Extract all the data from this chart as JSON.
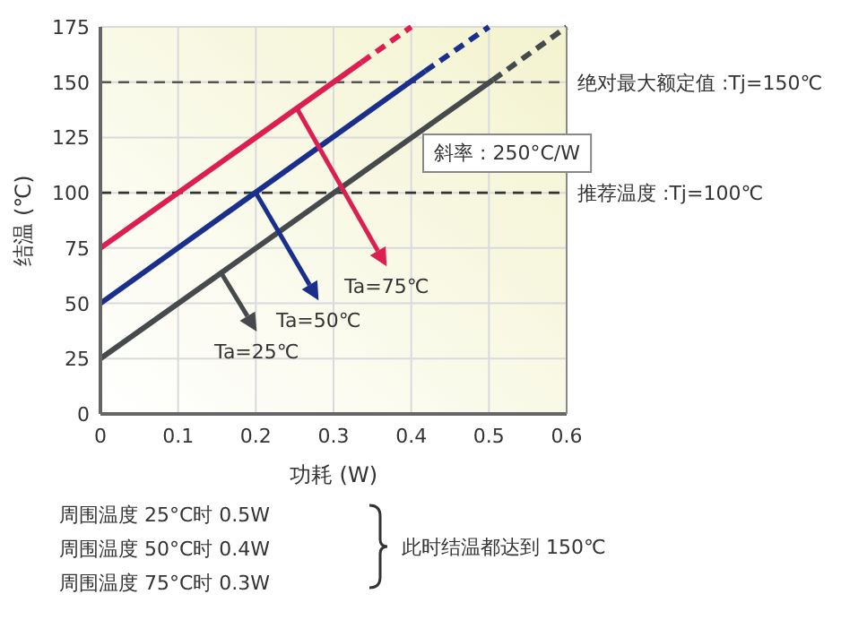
{
  "chart_data": {
    "type": "line",
    "xlabel": "功耗 (W)",
    "ylabel": "结温 (℃)",
    "xlim": [
      0,
      0.6
    ],
    "ylim": [
      0,
      175
    ],
    "xticks": [
      0,
      0.1,
      0.2,
      0.3,
      0.4,
      0.5,
      0.6
    ],
    "yticks": [
      0,
      25,
      50,
      75,
      100,
      125,
      150,
      175
    ],
    "grid": true,
    "series": [
      {
        "color": "#dc1e50",
        "line_style": "solid",
        "x": [
          0,
          0.336
        ],
        "values": [
          75,
          159
        ]
      },
      {
        "color": "#dc1e50",
        "line_style": "dashed",
        "x": [
          0.336,
          0.4
        ],
        "values": [
          159,
          175
        ]
      },
      {
        "color": "#1a2f8c",
        "line_style": "solid",
        "x": [
          0,
          0.418
        ],
        "values": [
          50,
          155
        ]
      },
      {
        "color": "#1a2f8c",
        "line_style": "dashed",
        "x": [
          0.418,
          0.5
        ],
        "values": [
          155,
          175
        ]
      },
      {
        "color": "#464a4c",
        "line_style": "solid",
        "x": [
          0,
          0.505
        ],
        "values": [
          25,
          151
        ]
      },
      {
        "color": "#464a4c",
        "line_style": "dashed",
        "x": [
          0.505,
          0.6
        ],
        "values": [
          151,
          175
        ]
      }
    ],
    "ref_lines": [
      {
        "axis": "y",
        "value": 150,
        "label": "绝对最大额定值 :Tj=150℃",
        "color": "#555555",
        "line_style": "dashed"
      },
      {
        "axis": "y",
        "value": 100,
        "label": "推荐温度 :Tj=100℃",
        "color": "#333333",
        "line_style": "dashed"
      }
    ],
    "annotations": [
      {
        "text": "Ta=25℃",
        "x": 0.155,
        "y": 64
      },
      {
        "text": "Ta=50℃",
        "x": 0.2,
        "y": 100
      },
      {
        "text": "Ta=75℃",
        "x": 0.253,
        "y": 138
      },
      "斜率 : 250°C/W",
      "周围温度 25°C时 0.5W",
      "周围温度 50°C时 0.4W",
      "周围温度 75°C时 0.3W",
      "此时结温都达到 150℃"
    ]
  }
}
